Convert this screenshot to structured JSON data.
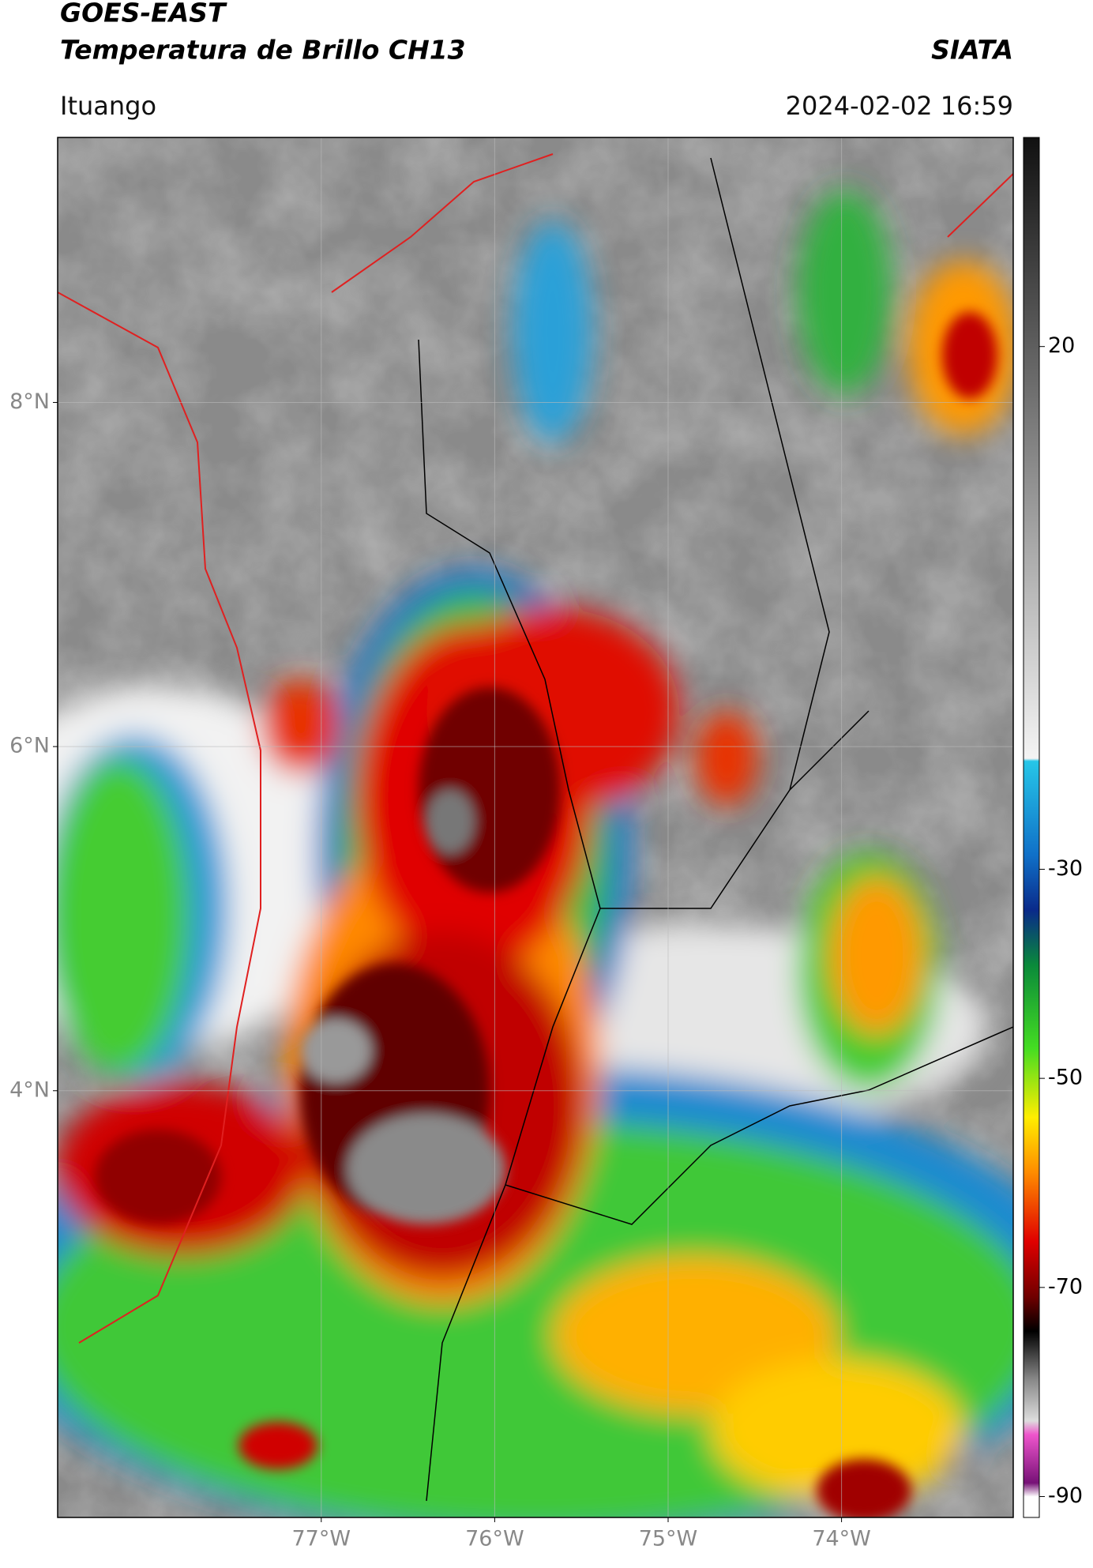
{
  "header": {
    "title": "GOES-EAST",
    "subtitle": "Temperatura de Brillo CH13",
    "source": "SIATA",
    "location": "Ituango",
    "datetime": "2024-02-02 16:59"
  },
  "chart_data": {
    "type": "map",
    "xlim": [
      -78.52,
      -73.01
    ],
    "ylim": [
      1.52,
      9.54
    ],
    "xticks": [
      {
        "value": -77,
        "label": "77°W"
      },
      {
        "value": -76,
        "label": "76°W"
      },
      {
        "value": -75,
        "label": "75°W"
      },
      {
        "value": -74,
        "label": "74°W"
      }
    ],
    "yticks": [
      {
        "value": 4,
        "label": "4°N"
      },
      {
        "value": 6,
        "label": "6°N"
      },
      {
        "value": 8,
        "label": "8°N"
      }
    ],
    "grid": true,
    "colorbar": {
      "clim": [
        -92,
        40
      ],
      "ticks": [
        20,
        -30,
        -50,
        -70,
        -90
      ]
    }
  }
}
